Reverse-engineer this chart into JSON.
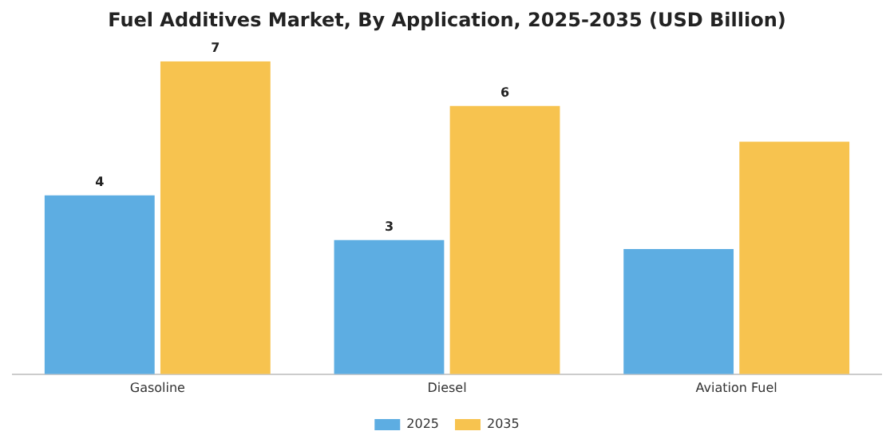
{
  "chart_data": {
    "type": "bar",
    "title": "Fuel Additives Market, By Application, 2025-2035 (USD Billion)",
    "categories": [
      "Gasoline",
      "Diesel",
      "Aviation Fuel"
    ],
    "series": [
      {
        "name": "2025",
        "color": "#5dade2",
        "values": [
          4,
          3,
          2.8
        ],
        "value_labels": [
          "4",
          "3",
          null
        ]
      },
      {
        "name": "2035",
        "color": "#f7c34f",
        "values": [
          7,
          6,
          5.2
        ],
        "value_labels": [
          "7",
          "6",
          null
        ]
      }
    ],
    "legend": "bottom",
    "grid": false
  }
}
